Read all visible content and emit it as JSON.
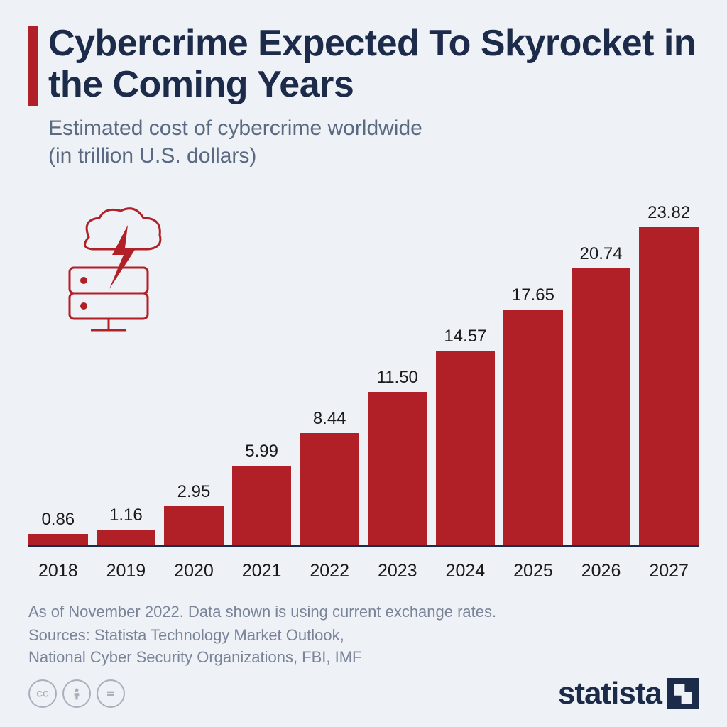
{
  "title": "Cybercrime Expected To Skyrocket in the Coming Years",
  "subtitle": "Estimated cost of cybercrime worldwide\n(in trillion U.S. dollars)",
  "chart": {
    "type": "bar",
    "categories": [
      "2018",
      "2019",
      "2020",
      "2021",
      "2022",
      "2023",
      "2024",
      "2025",
      "2026",
      "2027"
    ],
    "values": [
      0.86,
      1.16,
      2.95,
      5.99,
      8.44,
      11.5,
      14.57,
      17.65,
      20.74,
      23.82
    ],
    "value_labels": [
      "0.86",
      "1.16",
      "2.95",
      "5.99",
      "8.44",
      "11.50",
      "14.57",
      "17.65",
      "20.74",
      "23.82"
    ],
    "bar_color": "#b11f27",
    "axis_color": "#1c2b4a",
    "ymax": 25,
    "value_fontsize": 24,
    "xlabel_fontsize": 25,
    "bar_gap_ratio": 0.12,
    "background_color": "#eef1f5"
  },
  "icon": {
    "name": "server-cloud-bolt",
    "stroke": "#b11f27",
    "fill": "#b11f27"
  },
  "footer": {
    "note": "As of November 2022. Data shown is using current exchange rates.",
    "sources": "Sources: Statista Technology Market Outlook,\nNational Cyber Security Organizations, FBI, IMF"
  },
  "cc": {
    "items": [
      "cc",
      "by",
      "nd"
    ]
  },
  "logo": {
    "text": "statista",
    "color": "#1c2b4a"
  },
  "accent_color": "#b11f27",
  "title_color": "#1c2b4a",
  "subtitle_color": "#5a6a82",
  "footer_color": "#7a8499"
}
